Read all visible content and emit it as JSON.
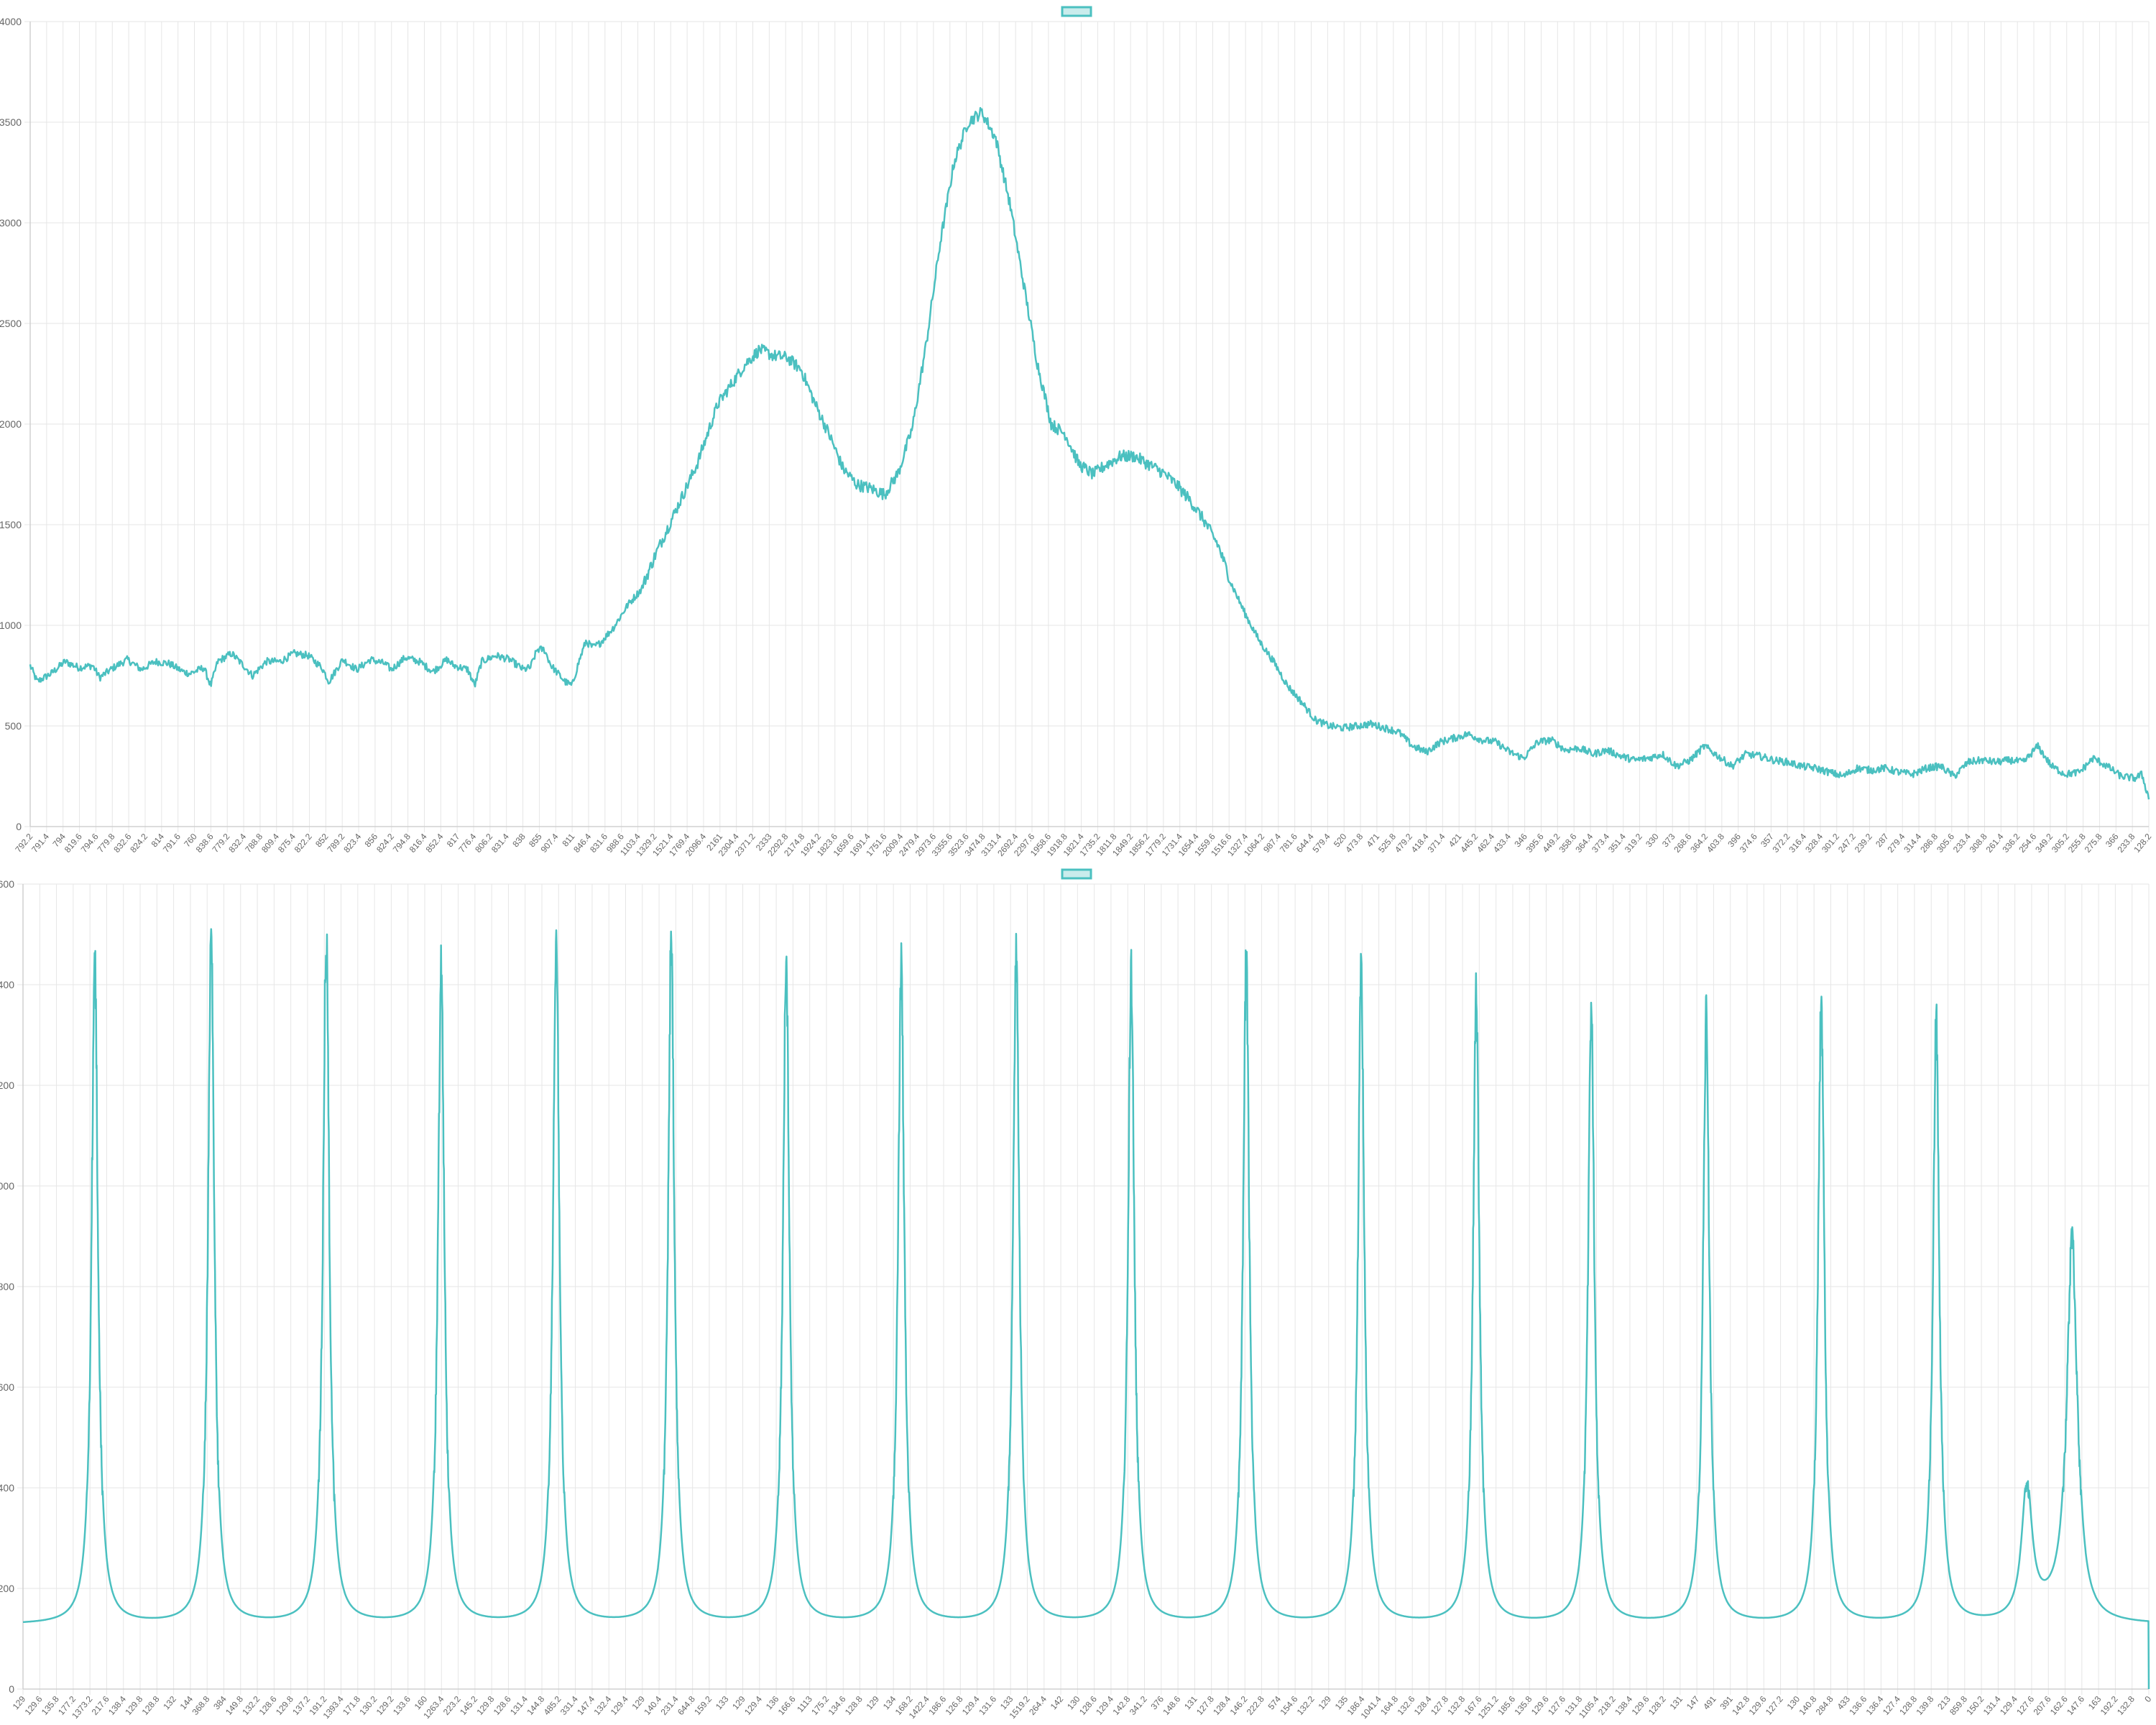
{
  "colors": {
    "series": "#4bc0c0",
    "series_fill": "rgba(75,192,192,0.3)",
    "grid": "#e6e6e6",
    "axis": "#d0d0d0",
    "tick": "#666666"
  },
  "chart_data": [
    {
      "type": "line",
      "legend": {
        "placement": "top-center",
        "label": ""
      },
      "grid": true,
      "ylim": [
        0,
        4000
      ],
      "yticks": [
        0,
        500,
        1000,
        1500,
        2000,
        2500,
        3000,
        3500,
        4000
      ],
      "xtick_labels": [
        "792.2",
        "791.4",
        "794",
        "819.6",
        "794.6",
        "779.8",
        "832.6",
        "824.2",
        "814",
        "791.6",
        "760",
        "838.6",
        "779.2",
        "832.4",
        "788.8",
        "809.4",
        "875.4",
        "822.2",
        "852",
        "789.2",
        "823.4",
        "856",
        "824.2",
        "794.8",
        "816.4",
        "852.4",
        "817",
        "776.4",
        "806.2",
        "831.4",
        "838",
        "855",
        "907.4",
        "811",
        "846.4",
        "831.6",
        "988.6",
        "1103.4",
        "1329.2",
        "1521.4",
        "1769.4",
        "2096.4",
        "2161",
        "2304.4",
        "2371.2",
        "2333",
        "2292.8",
        "2174.8",
        "1924.2",
        "1823.6",
        "1659.6",
        "1691.4",
        "1751.6",
        "2009.4",
        "2479.4",
        "2973.6",
        "3355.6",
        "3523.6",
        "3474.8",
        "3131.4",
        "2692.4",
        "2297.6",
        "1958.6",
        "1918.8",
        "1821.4",
        "1735.2",
        "1811.8",
        "1849.2",
        "1856.2",
        "1779.2",
        "1731.4",
        "1654.4",
        "1559.6",
        "1516.6",
        "1327.4",
        "1064.2",
        "987.4",
        "781.6",
        "644.4",
        "579.4",
        "520",
        "473.8",
        "471",
        "525.8",
        "479.2",
        "418.4",
        "371.4",
        "421",
        "445.2",
        "462.4",
        "433.4",
        "346",
        "395.6",
        "449.2",
        "358.6",
        "364.4",
        "373.4",
        "351.4",
        "319.2",
        "330",
        "373",
        "268.6",
        "364.2",
        "403.8",
        "396",
        "374.6",
        "357",
        "372.2",
        "316.4",
        "328.4",
        "301.2",
        "247.2",
        "239.2",
        "287",
        "279.4",
        "314.4",
        "286.8",
        "305.6",
        "233.4",
        "308.8",
        "261.4",
        "336.2",
        "254.6",
        "349.2",
        "305.2",
        "255.8",
        "275.8",
        "366",
        "233.8",
        "128.2"
      ],
      "series": [
        {
          "name": "",
          "anchors": [
            [
              0,
              800
            ],
            [
              1,
              720
            ],
            [
              3,
              760
            ],
            [
              5,
              820
            ],
            [
              7,
              790
            ],
            [
              9,
              800
            ],
            [
              10,
              740
            ],
            [
              12,
              790
            ],
            [
              14,
              830
            ],
            [
              16,
              780
            ],
            [
              18,
              820
            ],
            [
              20,
              810
            ],
            [
              22,
              770
            ],
            [
              23,
              760
            ],
            [
              25,
              790
            ],
            [
              26,
              700
            ],
            [
              27,
              820
            ],
            [
              29,
              860
            ],
            [
              31,
              790
            ],
            [
              32,
              750
            ],
            [
              34,
              820
            ],
            [
              36,
              820
            ],
            [
              38,
              860
            ],
            [
              40,
              850
            ],
            [
              42,
              790
            ],
            [
              43,
              720
            ],
            [
              45,
              830
            ],
            [
              47,
              780
            ],
            [
              49,
              830
            ],
            [
              51,
              810
            ],
            [
              52,
              780
            ],
            [
              54,
              840
            ],
            [
              56,
              820
            ],
            [
              58,
              770
            ],
            [
              60,
              830
            ],
            [
              61,
              800
            ],
            [
              63,
              780
            ],
            [
              64,
              700
            ],
            [
              65,
              820
            ],
            [
              67,
              850
            ],
            [
              69,
              830
            ],
            [
              71,
              780
            ],
            [
              72,
              790
            ],
            [
              73,
              880
            ],
            [
              74,
              880
            ],
            [
              75,
              800
            ],
            [
              76,
              760
            ],
            [
              77,
              720
            ],
            [
              78,
              700
            ],
            [
              79,
              820
            ],
            [
              80,
              920
            ],
            [
              81,
              890
            ],
            [
              82,
              910
            ],
            [
              84,
              990
            ],
            [
              86,
              1100
            ],
            [
              88,
              1180
            ],
            [
              90,
              1350
            ],
            [
              92,
              1500
            ],
            [
              94,
              1650
            ],
            [
              96,
              1800
            ],
            [
              98,
              2000
            ],
            [
              99,
              2100
            ],
            [
              101,
              2200
            ],
            [
              103,
              2300
            ],
            [
              105,
              2370
            ],
            [
              107,
              2340
            ],
            [
              109,
              2330
            ],
            [
              111,
              2270
            ],
            [
              113,
              2100
            ],
            [
              115,
              1950
            ],
            [
              117,
              1780
            ],
            [
              119,
              1700
            ],
            [
              121,
              1680
            ],
            [
              123,
              1650
            ],
            [
              125,
              1760
            ],
            [
              127,
              1980
            ],
            [
              129,
              2400
            ],
            [
              131,
              2900
            ],
            [
              133,
              3300
            ],
            [
              135,
              3500
            ],
            [
              137,
              3550
            ],
            [
              139,
              3420
            ],
            [
              141,
              3100
            ],
            [
              143,
              2700
            ],
            [
              145,
              2300
            ],
            [
              147,
              2000
            ],
            [
              149,
              1950
            ],
            [
              151,
              1800
            ],
            [
              153,
              1750
            ],
            [
              155,
              1800
            ],
            [
              157,
              1840
            ],
            [
              159,
              1840
            ],
            [
              161,
              1800
            ],
            [
              163,
              1760
            ],
            [
              165,
              1700
            ],
            [
              167,
              1620
            ],
            [
              169,
              1520
            ],
            [
              171,
              1400
            ],
            [
              173,
              1200
            ],
            [
              175,
              1050
            ],
            [
              177,
              920
            ],
            [
              179,
              820
            ],
            [
              181,
              700
            ],
            [
              183,
              620
            ],
            [
              185,
              530
            ],
            [
              187,
              500
            ],
            [
              189,
              490
            ],
            [
              191,
              500
            ],
            [
              193,
              510
            ],
            [
              195,
              490
            ],
            [
              197,
              470
            ],
            [
              199,
              400
            ],
            [
              201,
              370
            ],
            [
              203,
              420
            ],
            [
              205,
              440
            ],
            [
              207,
              460
            ],
            [
              209,
              430
            ],
            [
              211,
              420
            ],
            [
              213,
              370
            ],
            [
              215,
              340
            ],
            [
              217,
              420
            ],
            [
              219,
              430
            ],
            [
              221,
              380
            ],
            [
              223,
              390
            ],
            [
              225,
              360
            ],
            [
              227,
              380
            ],
            [
              229,
              350
            ],
            [
              231,
              330
            ],
            [
              233,
              340
            ],
            [
              235,
              360
            ],
            [
              237,
              300
            ],
            [
              239,
              330
            ],
            [
              241,
              400
            ],
            [
              243,
              350
            ],
            [
              245,
              300
            ],
            [
              247,
              360
            ],
            [
              249,
              350
            ],
            [
              251,
              330
            ],
            [
              253,
              320
            ],
            [
              255,
              300
            ],
            [
              257,
              290
            ],
            [
              259,
              270
            ],
            [
              261,
              250
            ],
            [
              263,
              290
            ],
            [
              265,
              280
            ],
            [
              267,
              290
            ],
            [
              269,
              270
            ],
            [
              271,
              260
            ],
            [
              273,
              290
            ],
            [
              275,
              300
            ],
            [
              277,
              250
            ],
            [
              279,
              320
            ],
            [
              281,
              330
            ],
            [
              283,
              320
            ],
            [
              285,
              330
            ],
            [
              287,
              320
            ],
            [
              289,
              400
            ],
            [
              291,
              300
            ],
            [
              293,
              260
            ],
            [
              295,
              270
            ],
            [
              297,
              340
            ],
            [
              299,
              300
            ],
            [
              301,
              250
            ],
            [
              303,
              240
            ],
            [
              304,
              260
            ],
            [
              305,
              140
            ]
          ]
        }
      ]
    },
    {
      "type": "line",
      "legend": {
        "placement": "top-center",
        "label": ""
      },
      "grid": true,
      "ylim": [
        0,
        1600
      ],
      "yticks": [
        0,
        200,
        400,
        600,
        800,
        1000,
        1200,
        1400,
        1600
      ],
      "baseline": 128,
      "xtick_labels": [
        "129",
        "129.6",
        "135.8",
        "177.2",
        "1373.2",
        "217.6",
        "138.4",
        "129.8",
        "128.8",
        "132",
        "144",
        "368.8",
        "384",
        "149.8",
        "132.2",
        "128.6",
        "129.8",
        "137.2",
        "191.2",
        "1393.4",
        "171.8",
        "130.2",
        "129.2",
        "133.6",
        "160",
        "1263.4",
        "223.2",
        "145.2",
        "129.8",
        "128.6",
        "131.4",
        "144.8",
        "485.2",
        "331.4",
        "147.4",
        "132.4",
        "129.4",
        "129",
        "140.4",
        "231.4",
        "644.8",
        "159.2",
        "133",
        "129",
        "129.4",
        "136",
        "166.6",
        "1113",
        "175.2",
        "134.6",
        "128.8",
        "129",
        "134",
        "168.2",
        "1422.4",
        "186.6",
        "126.8",
        "129.4",
        "131.6",
        "133",
        "1519.2",
        "264.4",
        "142",
        "130",
        "128.6",
        "129.4",
        "142.8",
        "341.2",
        "376",
        "148.6",
        "131",
        "127.8",
        "128.4",
        "146.2",
        "222.8",
        "574",
        "154.6",
        "132.2",
        "129",
        "135",
        "186.4",
        "1041.4",
        "164.8",
        "132.6",
        "128.4",
        "127.8",
        "132.8",
        "167.6",
        "1251.2",
        "185.6",
        "135.8",
        "129.6",
        "127.6",
        "131.8",
        "1105.4",
        "218.2",
        "138.4",
        "129.6",
        "128.2",
        "131",
        "147",
        "491",
        "391",
        "142.8",
        "129.6",
        "127.2",
        "130",
        "140.8",
        "284.8",
        "433",
        "136.6",
        "136.4",
        "127.4",
        "128.8",
        "139.8",
        "213",
        "859.8",
        "150.2",
        "131.4",
        "129.4",
        "127.6",
        "207.6",
        "162.6",
        "147.6",
        "163",
        "192.2",
        "132.8",
        "0"
      ],
      "peaks": [
        {
          "x": 10.3,
          "y": 1515
        },
        {
          "x": 27.0,
          "y": 1550
        },
        {
          "x": 43.5,
          "y": 1560
        },
        {
          "x": 60.0,
          "y": 1510
        },
        {
          "x": 76.5,
          "y": 1565
        },
        {
          "x": 93.0,
          "y": 1535
        },
        {
          "x": 109.5,
          "y": 1520
        },
        {
          "x": 126.0,
          "y": 1485
        },
        {
          "x": 142.5,
          "y": 1540
        },
        {
          "x": 159.0,
          "y": 1480
        },
        {
          "x": 175.5,
          "y": 1495
        },
        {
          "x": 192.0,
          "y": 1485
        },
        {
          "x": 208.5,
          "y": 1430
        },
        {
          "x": 225.0,
          "y": 1400
        },
        {
          "x": 241.5,
          "y": 1390
        },
        {
          "x": 258.0,
          "y": 1415
        },
        {
          "x": 274.5,
          "y": 1375
        },
        {
          "x": 287.5,
          "y": 400
        },
        {
          "x": 294.0,
          "y": 915
        }
      ],
      "end_drop": {
        "x": 305,
        "y": 0
      }
    }
  ]
}
